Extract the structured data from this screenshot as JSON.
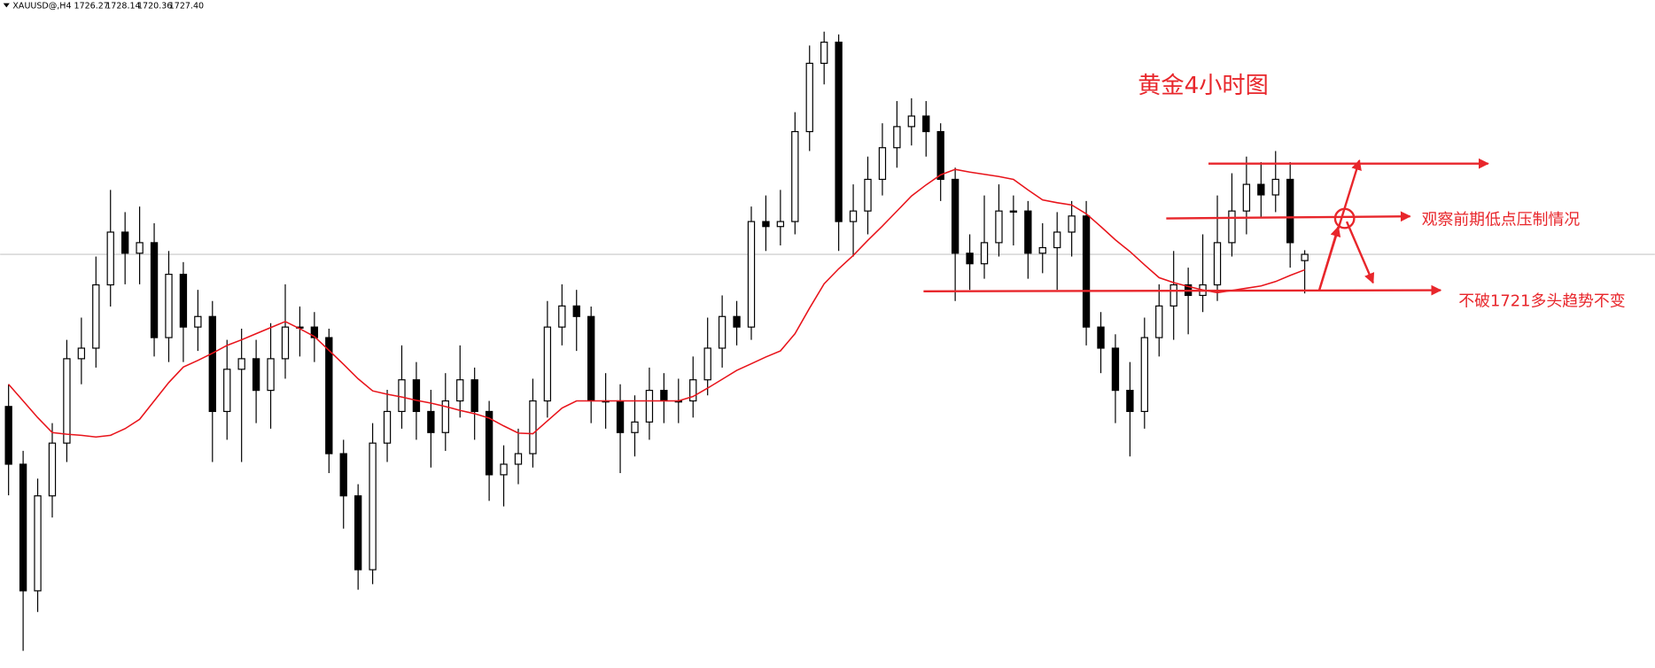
{
  "chart_data": {
    "type": "candlestick",
    "title": "黄金4小时图",
    "header": {
      "symbol": "XAUUSD@,H4",
      "ohlc": [
        "1726.27",
        "1728.14",
        "1720.36",
        "1727.40"
      ]
    },
    "annotations": [
      "观察前期低点压制情况",
      "不破1721多头趋势不变"
    ],
    "ylim": [
      1652.9,
      1773.2
    ],
    "candle_color": "#000000",
    "ma_color": "#e8141b",
    "price_line_color": "#c8c8c8",
    "open": [
      1700.0,
      1689.6,
      1666.8,
      1683.9,
      1693.4,
      1708.6,
      1710.5,
      1721.9,
      1731.4,
      1727.6,
      1729.5,
      1712.4,
      1723.8,
      1714.3,
      1716.2,
      1699.1,
      1706.7,
      1708.6,
      1702.9,
      1708.6,
      1714.3,
      1714.3,
      1712.4,
      1691.5,
      1683.9,
      1670.6,
      1693.4,
      1699.1,
      1704.8,
      1699.1,
      1695.3,
      1701.0,
      1704.8,
      1699.1,
      1687.7,
      1689.6,
      1691.5,
      1701.0,
      1714.3,
      1718.1,
      1716.2,
      1701.0,
      1701.0,
      1695.3,
      1697.2,
      1702.9,
      1701.0,
      1701.0,
      1704.8,
      1710.5,
      1716.2,
      1714.3,
      1733.3,
      1732.4,
      1733.3,
      1749.5,
      1761.8,
      1765.6,
      1733.3,
      1735.2,
      1740.9,
      1746.6,
      1750.4,
      1752.3,
      1749.5,
      1740.9,
      1727.6,
      1725.7,
      1729.5,
      1735.2,
      1735.2,
      1727.6,
      1728.6,
      1731.4,
      1734.3,
      1714.3,
      1710.5,
      1702.9,
      1699.1,
      1712.4,
      1718.1,
      1721.9,
      1720.0,
      1721.9,
      1729.5,
      1735.2,
      1740.0,
      1738.1,
      1740.9,
      1726.27
    ],
    "high": [
      1704,
      1692,
      1687,
      1697,
      1712,
      1716,
      1727,
      1739,
      1735,
      1736,
      1733,
      1728,
      1726,
      1721,
      1719,
      1712,
      1714,
      1712,
      1715,
      1722,
      1718,
      1717,
      1714,
      1694,
      1686,
      1697,
      1703,
      1711,
      1708,
      1703,
      1706,
      1711,
      1707,
      1701,
      1693,
      1696,
      1705,
      1719,
      1722,
      1721,
      1718,
      1706,
      1704,
      1702,
      1707,
      1706,
      1705,
      1709,
      1716,
      1720,
      1719,
      1736,
      1738,
      1739,
      1753,
      1765,
      1767.5,
      1767,
      1740,
      1745,
      1751,
      1755,
      1755.5,
      1755,
      1751,
      1743,
      1731,
      1738,
      1740,
      1738,
      1737,
      1733,
      1735,
      1737,
      1737,
      1717,
      1713,
      1708,
      1716,
      1722,
      1728,
      1725,
      1731,
      1738,
      1742,
      1745,
      1744,
      1746,
      1744,
      1728.14
    ],
    "low": [
      1684,
      1656,
      1663,
      1680,
      1690,
      1704,
      1707,
      1718,
      1722,
      1722,
      1709,
      1708,
      1708,
      1710,
      1690,
      1694,
      1690,
      1697,
      1696,
      1705,
      1709,
      1708,
      1688,
      1678,
      1667,
      1668,
      1690,
      1696,
      1694,
      1689,
      1692,
      1698,
      1694,
      1683,
      1682,
      1686,
      1689,
      1698,
      1711,
      1710,
      1697,
      1696,
      1688,
      1691,
      1694,
      1697,
      1697,
      1698,
      1702,
      1707,
      1711,
      1712,
      1728,
      1729,
      1731,
      1746,
      1758,
      1728,
      1727,
      1731,
      1738,
      1743,
      1747,
      1745,
      1737,
      1719,
      1721,
      1723,
      1727,
      1729,
      1723,
      1724,
      1721,
      1727,
      1711,
      1706,
      1697,
      1691,
      1696,
      1709,
      1712,
      1713,
      1717,
      1719,
      1727,
      1731,
      1734,
      1735,
      1725,
      1720.36
    ],
    "close": [
      1689.6,
      1666.8,
      1683.9,
      1693.4,
      1708.6,
      1710.5,
      1721.9,
      1731.4,
      1727.6,
      1729.5,
      1712.4,
      1723.8,
      1714.3,
      1716.2,
      1699.1,
      1706.7,
      1708.6,
      1702.9,
      1708.6,
      1714.3,
      1714.3,
      1712.4,
      1691.5,
      1683.9,
      1670.6,
      1693.4,
      1699.1,
      1704.8,
      1699.1,
      1695.3,
      1701.0,
      1704.8,
      1699.1,
      1687.7,
      1689.6,
      1691.5,
      1701.0,
      1714.3,
      1718.1,
      1716.2,
      1701.0,
      1701.0,
      1695.3,
      1697.2,
      1702.9,
      1701.0,
      1701.0,
      1704.8,
      1710.5,
      1716.2,
      1714.3,
      1733.3,
      1732.4,
      1733.3,
      1749.5,
      1761.8,
      1765.6,
      1733.3,
      1735.2,
      1740.9,
      1746.6,
      1750.4,
      1752.3,
      1749.5,
      1740.9,
      1727.6,
      1725.7,
      1729.5,
      1735.2,
      1735.2,
      1727.6,
      1728.6,
      1731.4,
      1734.3,
      1714.3,
      1710.5,
      1702.9,
      1699.1,
      1712.4,
      1718.1,
      1721.9,
      1720.0,
      1721.9,
      1729.5,
      1735.2,
      1740.0,
      1738.1,
      1740.9,
      1729.5,
      1727.4
    ],
    "ma": [
      1704.0,
      1701,
      1698,
      1695.3,
      1695.0,
      1694.8,
      1694.5,
      1694.8,
      1696.0,
      1697.7,
      1701.0,
      1704.3,
      1707.1,
      1708.3,
      1709.6,
      1711,
      1712.0,
      1713.1,
      1714.2,
      1715.3,
      1714.0,
      1712.6,
      1710.1,
      1707.6,
      1705.0,
      1702.8,
      1702.2,
      1701.7,
      1701.1,
      1700.6,
      1700.0,
      1699.3,
      1698.7,
      1697.9,
      1696.5,
      1695.2,
      1695.1,
      1697.4,
      1699.7,
      1701.0,
      1701.0,
      1701.0,
      1701.0,
      1701.0,
      1701.0,
      1701.0,
      1701.0,
      1701.8,
      1703.3,
      1704.9,
      1706.5,
      1707.7,
      1708.9,
      1710.0,
      1713.1,
      1717.7,
      1722.1,
      1724.8,
      1727.2,
      1729.9,
      1732.5,
      1735.2,
      1737.9,
      1739.9,
      1741.7,
      1742.7,
      1742.2,
      1741.8,
      1741.4,
      1740.9,
      1739.0,
      1737.2,
      1736.7,
      1736.3,
      1734.7,
      1732.4,
      1730.0,
      1727.9,
      1725.5,
      1723.2,
      1722.3,
      1721.6,
      1721.0,
      1720.5,
      1720.9,
      1721.3,
      1721.7,
      1722.5,
      1723.6,
      1724.6
    ]
  }
}
